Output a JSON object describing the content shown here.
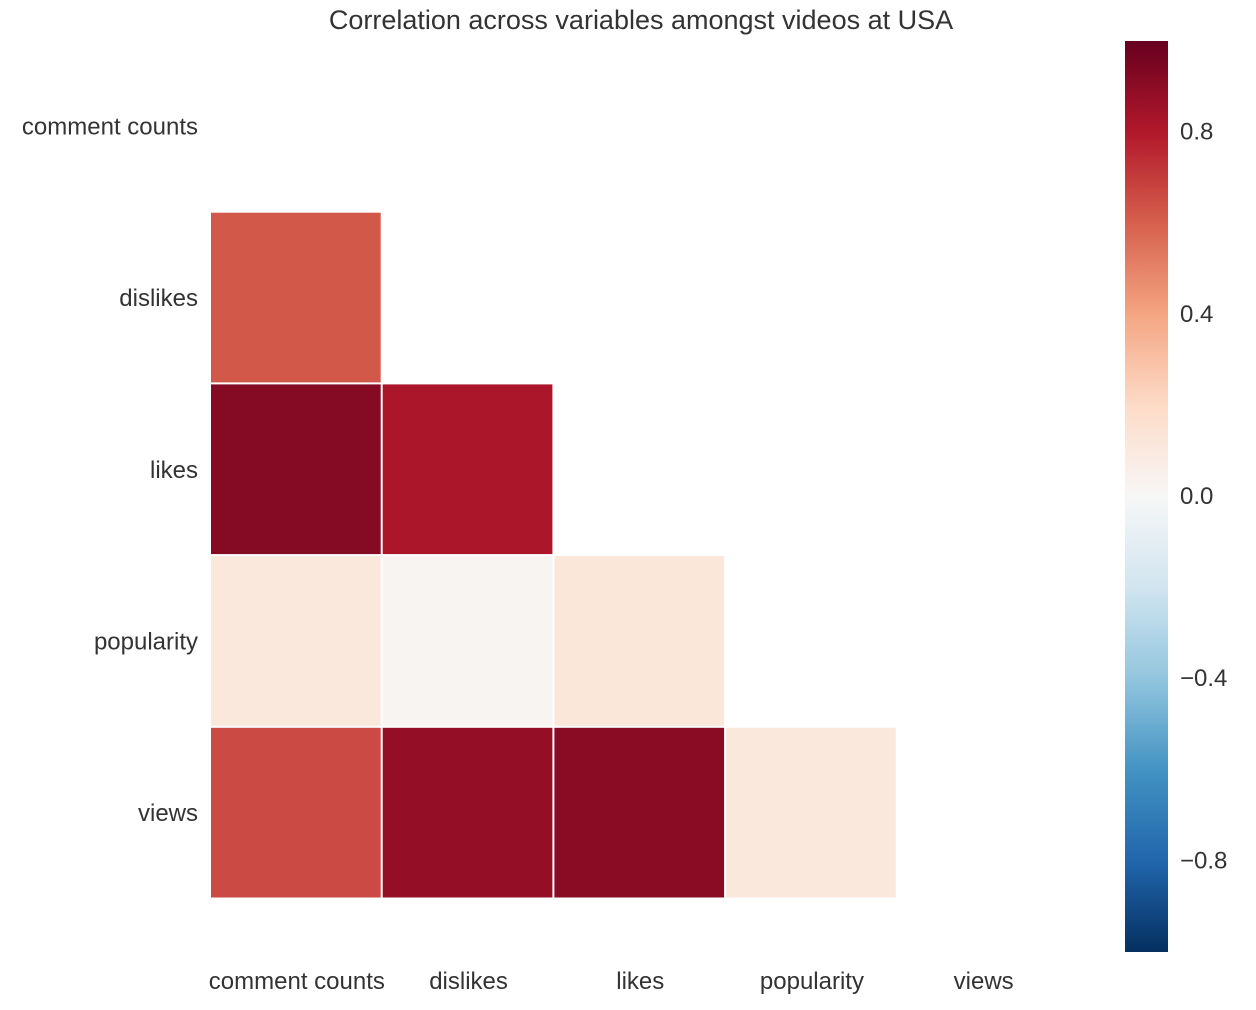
{
  "chart_data": {
    "type": "heatmap",
    "title": "Correlation across variables amongst videos at USA",
    "rows": [
      "comment counts",
      "dislikes",
      "likes",
      "popularity",
      "views"
    ],
    "columns": [
      "comment counts",
      "dislikes",
      "likes",
      "popularity",
      "views"
    ],
    "mask": "upper-triangle-including-diagonal",
    "values": [
      [
        null,
        null,
        null,
        null,
        null
      ],
      [
        0.62,
        null,
        null,
        null,
        null
      ],
      [
        0.92,
        0.82,
        null,
        null,
        null
      ],
      [
        0.11,
        0.02,
        0.12,
        null,
        null
      ],
      [
        0.66,
        0.88,
        0.91,
        0.11,
        null
      ]
    ],
    "colorbar": {
      "colormap": "RdBu_r",
      "range": [
        -1,
        1
      ],
      "ticks": [
        0.8,
        0.4,
        0.0,
        -0.4,
        -0.8
      ],
      "tick_labels": [
        "0.8",
        "0.4",
        "0.0",
        "−0.4",
        "−0.8"
      ]
    },
    "grid": false
  }
}
